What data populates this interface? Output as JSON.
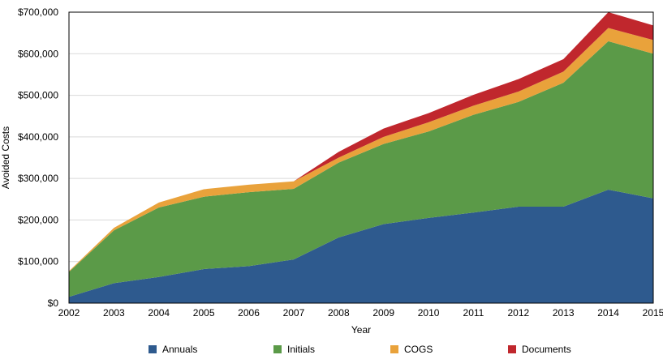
{
  "chart_data": {
    "type": "area",
    "stacked": true,
    "xlabel": "Year",
    "ylabel": "Avoided Costs",
    "ylim": [
      0,
      700000
    ],
    "yticks": [
      0,
      100000,
      200000,
      300000,
      400000,
      500000,
      600000,
      700000
    ],
    "ytick_labels": [
      "$0",
      "$100,000",
      "$200,000",
      "$300,000",
      "$400,000",
      "$500,000",
      "$600,000",
      "$700,000"
    ],
    "x": [
      "2002",
      "2003",
      "2004",
      "2005",
      "2006",
      "2007",
      "2008",
      "2009",
      "2010",
      "2011",
      "2012",
      "2013",
      "2014",
      "2015"
    ],
    "grid": true,
    "legend_position": "bottom",
    "series": [
      {
        "name": "Annuals",
        "color": "#2e5a8e",
        "values": [
          15000,
          48000,
          63000,
          82000,
          89000,
          105000,
          158000,
          190000,
          205000,
          218000,
          232000,
          232000,
          273000,
          252000
        ]
      },
      {
        "name": "Initials",
        "color": "#5b9a48",
        "values": [
          60000,
          127000,
          167000,
          174000,
          178000,
          170000,
          180000,
          193000,
          208000,
          235000,
          252000,
          298000,
          357000,
          348000
        ]
      },
      {
        "name": "COGS",
        "color": "#e9a23b",
        "values": [
          2000,
          6000,
          12000,
          18000,
          18000,
          18000,
          12000,
          17000,
          22000,
          22000,
          25000,
          27000,
          32000,
          33000
        ]
      },
      {
        "name": "Documents",
        "color": "#c0272d",
        "values": [
          0,
          0,
          0,
          0,
          0,
          0,
          14000,
          20000,
          22000,
          26000,
          30000,
          30000,
          38000,
          35000
        ]
      }
    ]
  }
}
